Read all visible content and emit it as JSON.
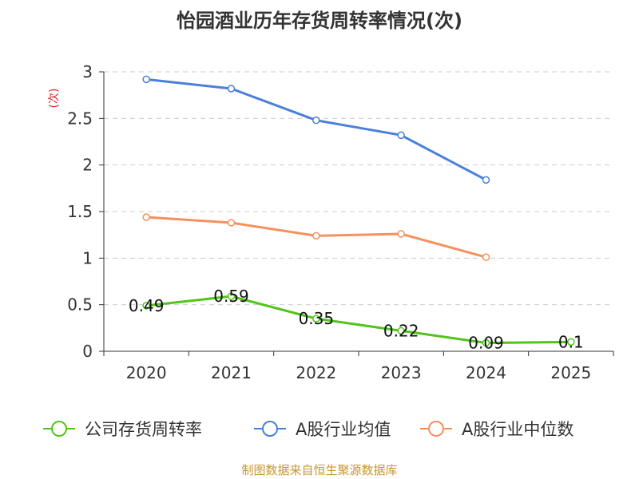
{
  "chart_data": {
    "type": "line",
    "title": "怡园酒业历年存货周转率情况(次)",
    "ylabel": "(次)",
    "xlabel": "",
    "categories": [
      "2020",
      "2021",
      "2022",
      "2023",
      "2024",
      "2025"
    ],
    "yticks": [
      "0",
      "0.5",
      "1",
      "1.5",
      "2",
      "2.5",
      "3"
    ],
    "ylim": [
      0,
      3
    ],
    "grid": true,
    "legend_position": "bottom",
    "series": [
      {
        "name": "公司存货周转率",
        "color": "#52c41a",
        "values": [
          0.49,
          0.59,
          0.35,
          0.22,
          0.09,
          0.1
        ],
        "labels": [
          "0.49",
          "0.59",
          "0.35",
          "0.22",
          "0.09",
          "0.1"
        ]
      },
      {
        "name": "A股行业均值",
        "color": "#4a7fdc",
        "values": [
          2.92,
          2.82,
          2.48,
          2.32,
          1.84,
          null
        ]
      },
      {
        "name": "A股行业中位数",
        "color": "#f4915f",
        "values": [
          1.44,
          1.38,
          1.24,
          1.26,
          1.01,
          null
        ]
      }
    ],
    "source": "制图数据来自恒生聚源数据库"
  }
}
